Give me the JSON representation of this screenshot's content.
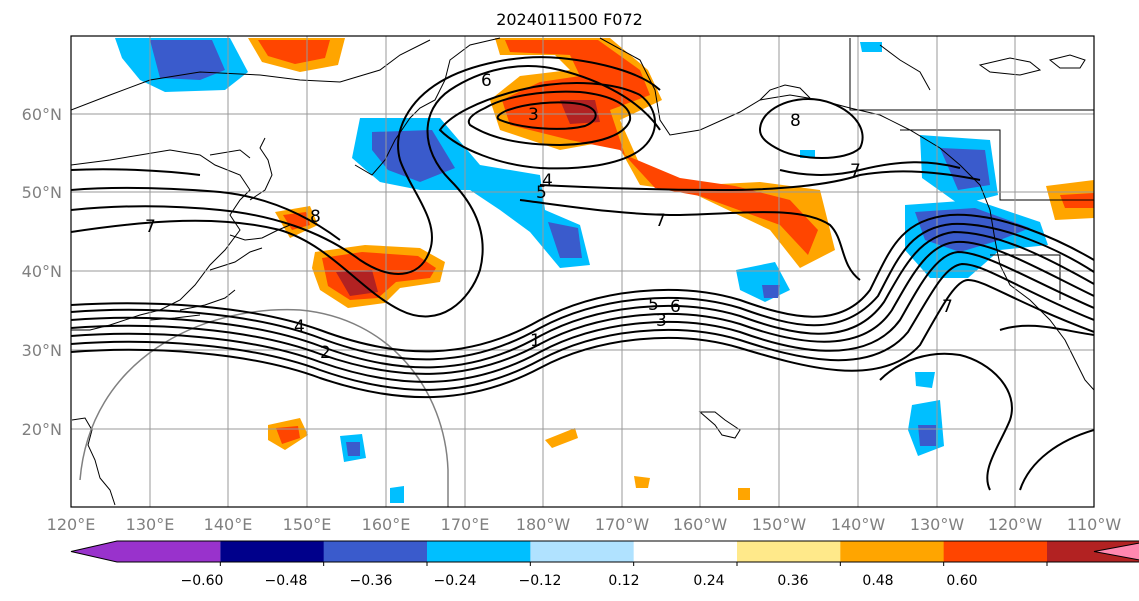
{
  "title": "2024011500 F072",
  "lat_labels": [
    "60°N",
    "50°N",
    "40°N",
    "30°N",
    "20°N"
  ],
  "lon_labels": [
    "120°E",
    "130°E",
    "140°E",
    "150°E",
    "160°E",
    "170°E",
    "180°W",
    "170°W",
    "160°W",
    "150°W",
    "140°W",
    "130°W",
    "120°W",
    "110°W"
  ],
  "colorbar": {
    "colors": [
      "#9932cc",
      "#00008b",
      "#3a5bcc",
      "#00bfff",
      "#b0e2ff",
      "#ffffff",
      "#ffe98a",
      "#ffa500",
      "#ff4500",
      "#b22222",
      "#ff88b0"
    ],
    "tick_labels": [
      "−0.60",
      "−0.48",
      "−0.36",
      "−0.24",
      "−0.12",
      "0.12",
      "0.24",
      "0.36",
      "0.48",
      "0.60"
    ]
  },
  "contour_labels": [
    "6",
    "3",
    "4",
    "5",
    "7",
    "8",
    "7",
    "7",
    "2",
    "4",
    "1",
    "5",
    "6",
    "3",
    "8",
    "7"
  ]
}
